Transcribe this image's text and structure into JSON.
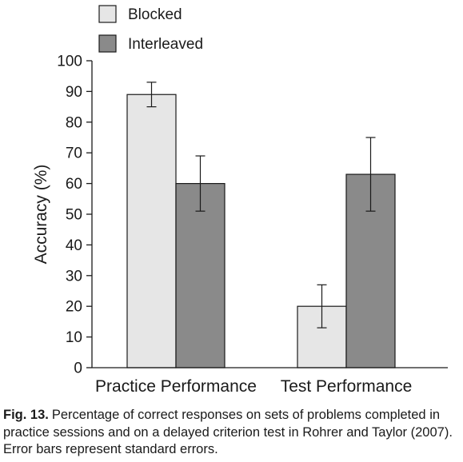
{
  "chart_data": {
    "type": "bar",
    "categories": [
      "Practice Performance",
      "Test Performance"
    ],
    "series": [
      {
        "name": "Blocked",
        "color": "#e6e6e6",
        "values": [
          89,
          20
        ],
        "error": [
          4,
          7
        ]
      },
      {
        "name": "Interleaved",
        "color": "#8a8a8a",
        "values": [
          60,
          63
        ],
        "error": [
          9,
          12
        ]
      }
    ],
    "xlabel": "",
    "ylabel": "Accuracy (%)",
    "ylim": [
      0,
      100
    ],
    "yticks": [
      0,
      10,
      20,
      30,
      40,
      50,
      60,
      70,
      80,
      90,
      100
    ],
    "legend_position": "top-left",
    "grid": false,
    "error_bars": "standard errors"
  },
  "caption": {
    "label": "Fig. 13.",
    "text": "Percentage of correct responses on sets of problems completed in practice sessions and on a delayed criterion test in Rohrer and Taylor (2007). Error bars represent standard errors."
  }
}
